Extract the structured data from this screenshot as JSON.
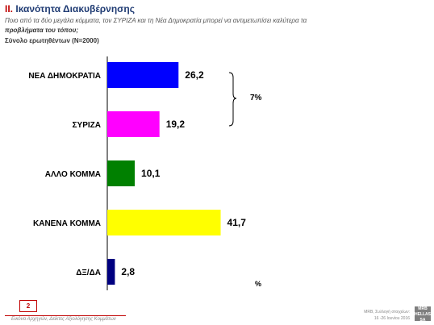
{
  "header": {
    "number": "II.",
    "title": "Ικανότητα Διακυβέρνησης",
    "subtitle_part1": "Ποιο από τα δύο μεγάλα κόμματα, τον ΣΥΡΙΖΑ και τη Νέα Δημοκρατία μπορεί να αντιμετωπίσει καλύτερα τα",
    "subtitle_bold": "προβλήματα του τόπου;",
    "sample": "Σύνολο ερωτηθέντων (Ν=2000)"
  },
  "chart_data": {
    "type": "bar",
    "orientation": "horizontal",
    "categories": [
      "ΝΕΑ ΔΗΜΟΚΡΑΤΙΑ",
      "ΣΥΡΙΖΑ",
      "ΑΛΛΟ ΚΟΜΜΑ",
      "ΚΑΝΕΝΑ ΚΟΜΜΑ",
      "ΔΞ/ΔΑ"
    ],
    "values": [
      26.2,
      19.2,
      10.1,
      41.7,
      2.8
    ],
    "value_labels": [
      "26,2",
      "19,2",
      "10,1",
      "41,7",
      "2,8"
    ],
    "colors": [
      "#0000ff",
      "#ff00ff",
      "#008000",
      "#ffff00",
      "#000080"
    ],
    "grid": false,
    "annotation": "7%",
    "unit": "%"
  },
  "footer": {
    "page": "2",
    "left_text": "Εικόνα Αρχηγών, Δείκτες Αξιολόγησης Κομμάτων",
    "right_line1": "MRB, Συλλογή στοιχείων:",
    "right_line2": "16 -26  Ιουνίου 2016",
    "logo_line1": "MRB",
    "logo_line2": "HELLAS SA"
  }
}
